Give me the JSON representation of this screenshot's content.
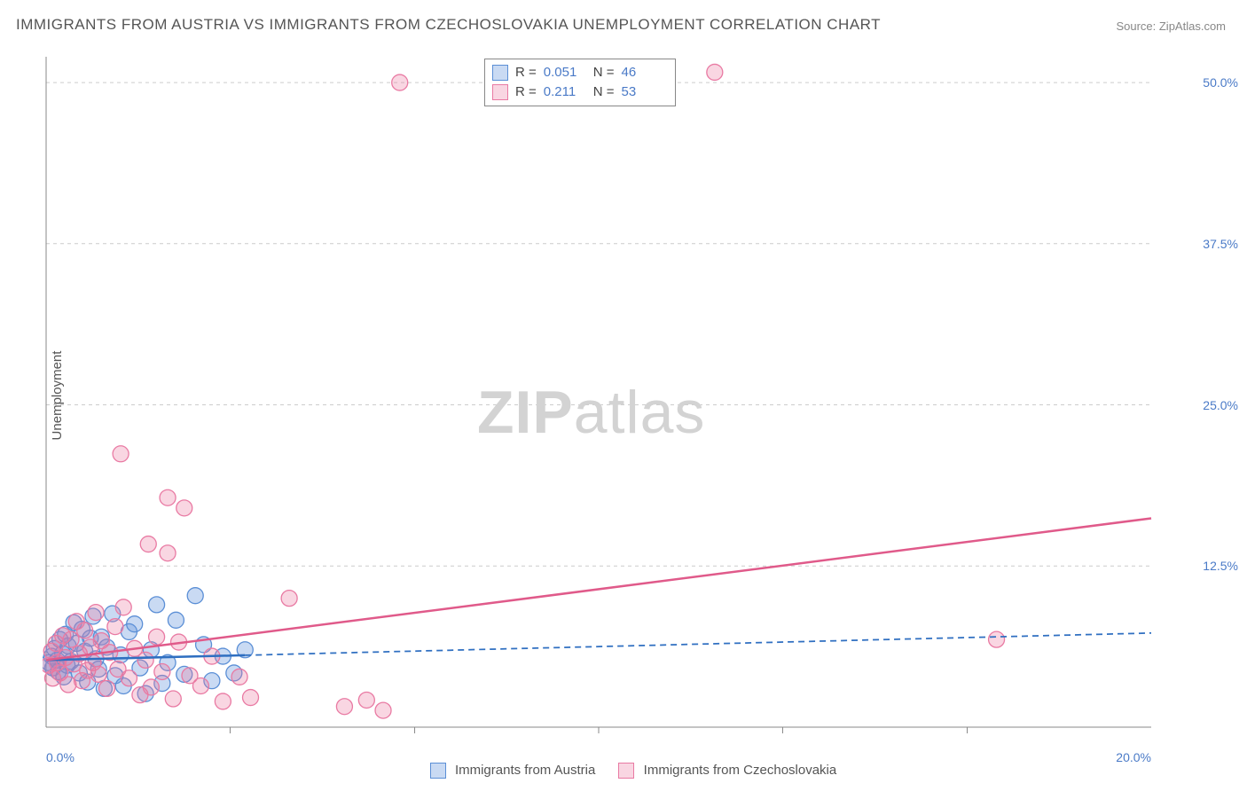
{
  "title": "IMMIGRANTS FROM AUSTRIA VS IMMIGRANTS FROM CZECHOSLOVAKIA UNEMPLOYMENT CORRELATION CHART",
  "source": "Source: ZipAtlas.com",
  "ylabel": "Unemployment",
  "watermark": {
    "zip": "ZIP",
    "atlas": "atlas"
  },
  "colors": {
    "blue_fill": "rgba(100,150,220,0.35)",
    "blue_stroke": "#5b8fd6",
    "pink_fill": "rgba(235,120,160,0.30)",
    "pink_stroke": "#e97aa3",
    "blue_line": "#2f6fc1",
    "pink_line": "#e05a8a",
    "grid": "#cccccc",
    "axis": "#888888",
    "tick_text": "#4a7ac7"
  },
  "chart": {
    "type": "scatter",
    "xlim": [
      0,
      20
    ],
    "ylim": [
      0,
      52
    ],
    "x_ticks": [
      0,
      20
    ],
    "x_tick_labels": [
      "0.0%",
      "20.0%"
    ],
    "y_ticks": [
      12.5,
      25.0,
      37.5,
      50.0
    ],
    "y_tick_labels": [
      "12.5%",
      "25.0%",
      "37.5%",
      "50.0%"
    ],
    "x_minor_ticks": [
      3.33,
      6.67,
      10,
      13.33,
      16.67
    ],
    "grid_dash": "4,4",
    "marker_radius": 9,
    "background": "#ffffff"
  },
  "series": [
    {
      "name": "Immigrants from Austria",
      "color_fill": "rgba(100,150,220,0.35)",
      "color_stroke": "#5b8fd6",
      "R": "0.051",
      "N": "46",
      "trend": {
        "x1": 0,
        "y1": 5.2,
        "x2": 20,
        "y2": 7.3,
        "solid_until_x": 3.6,
        "color": "#2f6fc1",
        "width": 2.5,
        "dash": "7,5"
      },
      "points": [
        [
          0.05,
          5.0
        ],
        [
          0.1,
          5.5
        ],
        [
          0.12,
          4.6
        ],
        [
          0.15,
          6.1
        ],
        [
          0.2,
          5.2
        ],
        [
          0.22,
          4.3
        ],
        [
          0.25,
          6.8
        ],
        [
          0.3,
          5.7
        ],
        [
          0.32,
          3.9
        ],
        [
          0.35,
          7.2
        ],
        [
          0.38,
          4.8
        ],
        [
          0.4,
          6.3
        ],
        [
          0.45,
          5.1
        ],
        [
          0.5,
          8.1
        ],
        [
          0.55,
          6.5
        ],
        [
          0.6,
          4.2
        ],
        [
          0.65,
          7.6
        ],
        [
          0.7,
          5.9
        ],
        [
          0.75,
          3.5
        ],
        [
          0.8,
          6.9
        ],
        [
          0.85,
          8.6
        ],
        [
          0.9,
          5.3
        ],
        [
          0.95,
          4.5
        ],
        [
          1.0,
          7.0
        ],
        [
          1.05,
          3.0
        ],
        [
          1.1,
          6.2
        ],
        [
          1.2,
          8.8
        ],
        [
          1.25,
          4.0
        ],
        [
          1.35,
          5.6
        ],
        [
          1.4,
          3.2
        ],
        [
          1.5,
          7.4
        ],
        [
          1.6,
          8.0
        ],
        [
          1.7,
          4.6
        ],
        [
          1.8,
          2.6
        ],
        [
          1.9,
          6.0
        ],
        [
          2.0,
          9.5
        ],
        [
          2.1,
          3.4
        ],
        [
          2.2,
          5.0
        ],
        [
          2.35,
          8.3
        ],
        [
          2.5,
          4.1
        ],
        [
          2.7,
          10.2
        ],
        [
          2.85,
          6.4
        ],
        [
          3.0,
          3.6
        ],
        [
          3.2,
          5.5
        ],
        [
          3.4,
          4.2
        ],
        [
          3.6,
          6.0
        ]
      ]
    },
    {
      "name": "Immigrants from Czechoslovakia",
      "color_fill": "rgba(235,120,160,0.30)",
      "color_stroke": "#e97aa3",
      "R": "0.211",
      "N": "53",
      "trend": {
        "x1": 0,
        "y1": 5.2,
        "x2": 20,
        "y2": 16.2,
        "solid_until_x": 20,
        "color": "#e05a8a",
        "width": 2.5
      },
      "points": [
        [
          0.05,
          4.8
        ],
        [
          0.1,
          5.9
        ],
        [
          0.12,
          3.8
        ],
        [
          0.18,
          6.5
        ],
        [
          0.2,
          5.0
        ],
        [
          0.25,
          4.2
        ],
        [
          0.3,
          7.1
        ],
        [
          0.35,
          5.4
        ],
        [
          0.4,
          3.3
        ],
        [
          0.45,
          6.8
        ],
        [
          0.5,
          4.9
        ],
        [
          0.55,
          8.2
        ],
        [
          0.6,
          5.7
        ],
        [
          0.65,
          3.6
        ],
        [
          0.7,
          7.5
        ],
        [
          0.75,
          4.4
        ],
        [
          0.8,
          6.2
        ],
        [
          0.85,
          5.0
        ],
        [
          0.9,
          8.9
        ],
        [
          0.95,
          4.1
        ],
        [
          1.0,
          6.7
        ],
        [
          1.1,
          3.0
        ],
        [
          1.15,
          5.8
        ],
        [
          1.25,
          7.8
        ],
        [
          1.3,
          4.5
        ],
        [
          1.4,
          9.3
        ],
        [
          1.5,
          3.8
        ],
        [
          1.6,
          6.1
        ],
        [
          1.7,
          2.5
        ],
        [
          1.35,
          21.2
        ],
        [
          1.8,
          5.2
        ],
        [
          1.85,
          14.2
        ],
        [
          1.9,
          3.1
        ],
        [
          2.0,
          7.0
        ],
        [
          2.1,
          4.3
        ],
        [
          2.2,
          13.5
        ],
        [
          2.3,
          2.2
        ],
        [
          2.2,
          17.8
        ],
        [
          2.4,
          6.6
        ],
        [
          2.5,
          17.0
        ],
        [
          2.6,
          4.0
        ],
        [
          2.8,
          3.2
        ],
        [
          3.0,
          5.5
        ],
        [
          3.2,
          2.0
        ],
        [
          3.5,
          3.9
        ],
        [
          3.7,
          2.3
        ],
        [
          4.4,
          10.0
        ],
        [
          5.4,
          1.6
        ],
        [
          5.8,
          2.1
        ],
        [
          6.1,
          1.3
        ],
        [
          6.4,
          50.0
        ],
        [
          12.1,
          50.8
        ],
        [
          17.2,
          6.8
        ]
      ]
    }
  ],
  "legend_bottom": [
    {
      "label": "Immigrants from Austria",
      "fill": "rgba(100,150,220,0.35)",
      "stroke": "#5b8fd6"
    },
    {
      "label": "Immigrants from Czechoslovakia",
      "fill": "rgba(235,120,160,0.30)",
      "stroke": "#e97aa3"
    }
  ]
}
